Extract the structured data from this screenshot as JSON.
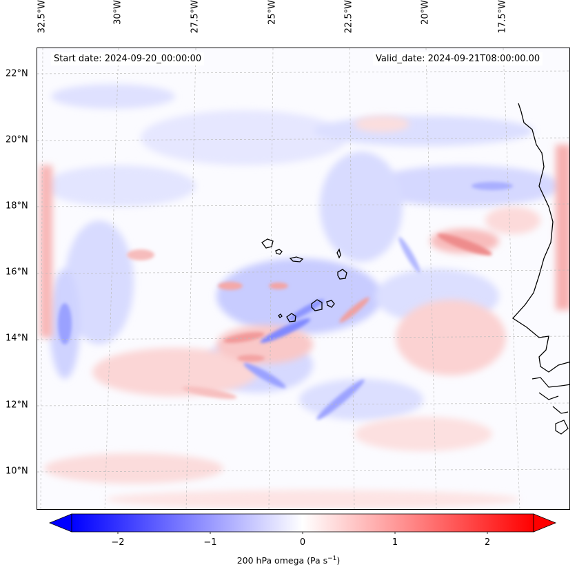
{
  "map": {
    "start_date": "Start date: 2024-09-20_00:00:00",
    "valid_date": "Valid_date: 2024-09-21T08:00:00.00",
    "lon_ticks": [
      "32.5°W",
      "30°W",
      "27.5°W",
      "25°W",
      "22.5°W",
      "20°W",
      "17.5°W"
    ],
    "lat_ticks": [
      "22°N",
      "20°N",
      "18°N",
      "16°N",
      "14°N",
      "12°N",
      "10°N"
    ],
    "extent": {
      "lon_min": -33.0,
      "lon_max": -15.6,
      "lat_min": 8.9,
      "lat_max": 22.8
    },
    "field_name": "200 hPa omega",
    "colormap": "bwr",
    "color_low": "#0000ff",
    "color_mid": "#ffffff",
    "color_high": "#ff0000"
  },
  "colorbar": {
    "label_main": "200 hPa omega (Pa s",
    "label_sup": "−1",
    "label_close": ")",
    "ticks": [
      "−2",
      "−1",
      "0",
      "1",
      "2"
    ],
    "range": [
      -2.5,
      2.5
    ],
    "extend": "both"
  }
}
